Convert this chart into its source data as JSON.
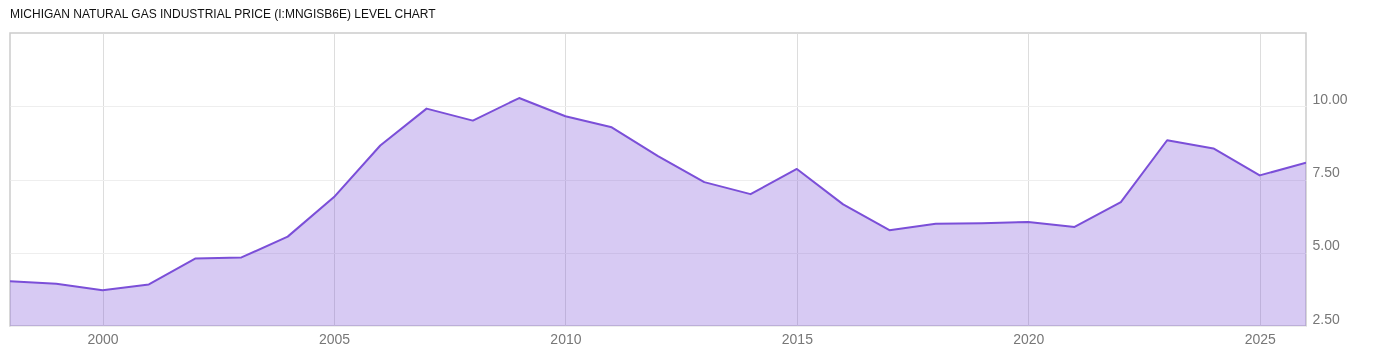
{
  "chart_data": {
    "type": "area",
    "title": "MICHIGAN NATURAL GAS INDUSTRIAL PRICE (I:MNGISB6E) LEVEL CHART",
    "x": [
      1998,
      1999,
      2000,
      2001,
      2002,
      2003,
      2004,
      2005,
      2006,
      2007,
      2008,
      2009,
      2010,
      2011,
      2012,
      2013,
      2014,
      2015,
      2016,
      2017,
      2018,
      2019,
      2020,
      2021,
      2022,
      2023,
      2024,
      2025,
      2026
    ],
    "series": [
      {
        "color": "#7b4fd8",
        "values": [
          4.03,
          3.94,
          3.72,
          3.92,
          4.8,
          4.84,
          5.55,
          6.9,
          8.66,
          9.92,
          9.51,
          10.28,
          9.66,
          9.28,
          8.3,
          7.41,
          7.0,
          7.86,
          6.65,
          5.77,
          5.99,
          6.01,
          6.05,
          5.88,
          6.73,
          8.84,
          8.56,
          7.64,
          8.07
        ]
      }
    ],
    "xlim": [
      1998,
      2026
    ],
    "xticks": [
      2000,
      2005,
      2010,
      2015,
      2020,
      2025
    ],
    "ylim": [
      2.5,
      12.5
    ],
    "yticks": [
      {
        "value": 2.5,
        "label": "2.50"
      },
      {
        "value": 5,
        "label": "5.00"
      },
      {
        "value": 7.5,
        "label": "7.50"
      },
      {
        "value": 10,
        "label": "10.00"
      }
    ],
    "grid": true
  }
}
